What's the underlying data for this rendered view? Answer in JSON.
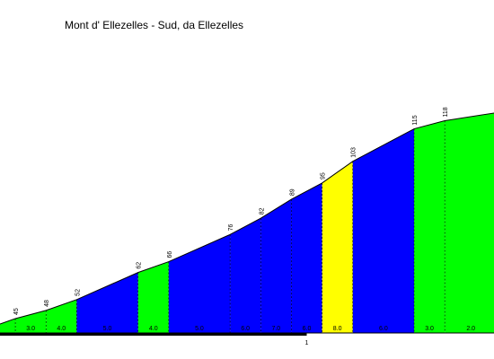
{
  "chart_data": {
    "type": "area",
    "title": "Mont d' Ellezelles - Sud, da Ellezelles",
    "xlabel": "",
    "ylabel": "",
    "x_ticks": [
      {
        "km": 1,
        "label": "1"
      }
    ],
    "points": [
      {
        "km": 0.0,
        "alt": 43,
        "label": ""
      },
      {
        "km": 0.05,
        "alt": 45,
        "label": "45"
      },
      {
        "km": 0.15,
        "alt": 48,
        "label": "48"
      },
      {
        "km": 0.25,
        "alt": 52,
        "label": "52"
      },
      {
        "km": 0.45,
        "alt": 62,
        "label": "62"
      },
      {
        "km": 0.55,
        "alt": 66,
        "label": "66"
      },
      {
        "km": 0.75,
        "alt": 76,
        "label": "76"
      },
      {
        "km": 0.85,
        "alt": 82,
        "label": "82"
      },
      {
        "km": 0.95,
        "alt": 89,
        "label": "89"
      },
      {
        "km": 1.05,
        "alt": 95,
        "label": "95"
      },
      {
        "km": 1.15,
        "alt": 103,
        "label": "103"
      },
      {
        "km": 1.35,
        "alt": 115,
        "label": "115"
      },
      {
        "km": 1.45,
        "alt": 118,
        "label": "118"
      },
      {
        "km": 1.62,
        "alt": 121,
        "label": ""
      }
    ],
    "segments": [
      {
        "grade": "",
        "color": "#00ff00"
      },
      {
        "grade": "3.0",
        "color": "#00ff00"
      },
      {
        "grade": "4.0",
        "color": "#00ff00"
      },
      {
        "grade": "5.0",
        "color": "#0000ff"
      },
      {
        "grade": "4.0",
        "color": "#00ff00"
      },
      {
        "grade": "5.0",
        "color": "#0000ff"
      },
      {
        "grade": "6.0",
        "color": "#0000ff"
      },
      {
        "grade": "7.0",
        "color": "#0000ff"
      },
      {
        "grade": "6.0",
        "color": "#0000ff"
      },
      {
        "grade": "8.0",
        "color": "#ffff00"
      },
      {
        "grade": "6.0",
        "color": "#0000ff"
      },
      {
        "grade": "3.0",
        "color": "#00ff00"
      },
      {
        "grade": "2.0",
        "color": "#00ff00"
      }
    ],
    "colors": {
      "green": "#00ff00",
      "blue": "#0000ff",
      "yellow": "#ffff00"
    }
  }
}
